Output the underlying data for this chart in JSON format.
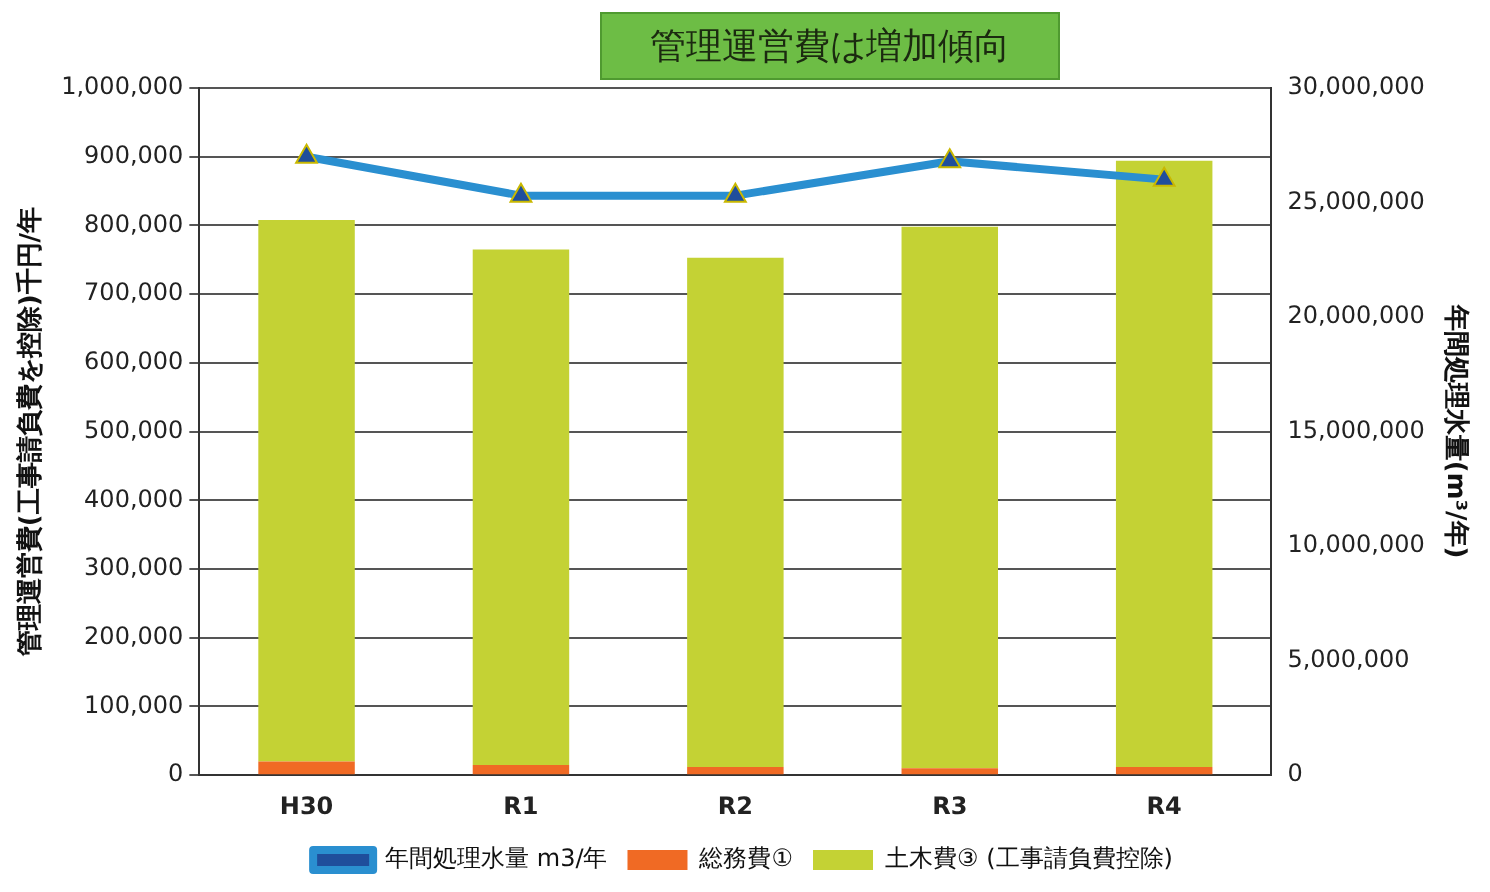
{
  "chart_data": {
    "type": "bar",
    "stacked": true,
    "categories": [
      "H30",
      "R1",
      "R2",
      "R3",
      "R4"
    ],
    "ylabel": "管理運営費(工事請負費を控除)千円/年",
    "y2label": "年間処理水量(m³/年)",
    "ylim": [
      0,
      1000000
    ],
    "yticks": [
      0,
      {
        "value": 100000,
        "label": "100,000"
      },
      {
        "value": 200000,
        "label": "200,000"
      },
      {
        "value": 300000,
        "label": "300,000"
      },
      {
        "value": 400000,
        "label": "400,000"
      },
      {
        "value": 500000,
        "label": "500,000"
      },
      {
        "value": 600000,
        "label": "600,000"
      },
      {
        "value": 700000,
        "label": "700,000"
      },
      {
        "value": 800000,
        "label": "800,000"
      },
      {
        "value": 900000,
        "label": "900,000"
      },
      {
        "value": 1000000,
        "label": "1,000,000"
      }
    ],
    "y2lim": [
      0,
      30000000
    ],
    "y2ticks": [
      0,
      {
        "value": 5000000,
        "label": "5,000,000"
      },
      {
        "value": 10000000,
        "label": "10,000,000"
      },
      {
        "value": 15000000,
        "label": "15,000,000"
      },
      {
        "value": 20000000,
        "label": "20,000,000"
      },
      {
        "value": 25000000,
        "label": "25,000,000"
      },
      {
        "value": 30000000,
        "label": "30,000,000"
      }
    ],
    "grid": "y",
    "legend": "bottom",
    "marker": "triangle",
    "line_style": "solid",
    "annotations": [
      "管理運営費は増加傾向"
    ],
    "series": [
      {
        "name": "総務費①",
        "color": "#f06a24",
        "values": [
          20000,
          15000,
          12000,
          10000,
          12000
        ]
      },
      {
        "name": "土木費③ (工事請負費控除)",
        "color": "#c4d234",
        "values": [
          788000,
          750000,
          741000,
          788000,
          882000
        ]
      },
      {
        "name": "年間処理水量 m3/年",
        "type": "line",
        "axis": "y2",
        "color": "#2a8fd0",
        "values": [
          27000000,
          25300000,
          25300000,
          26800000,
          26000000
        ]
      }
    ]
  }
}
